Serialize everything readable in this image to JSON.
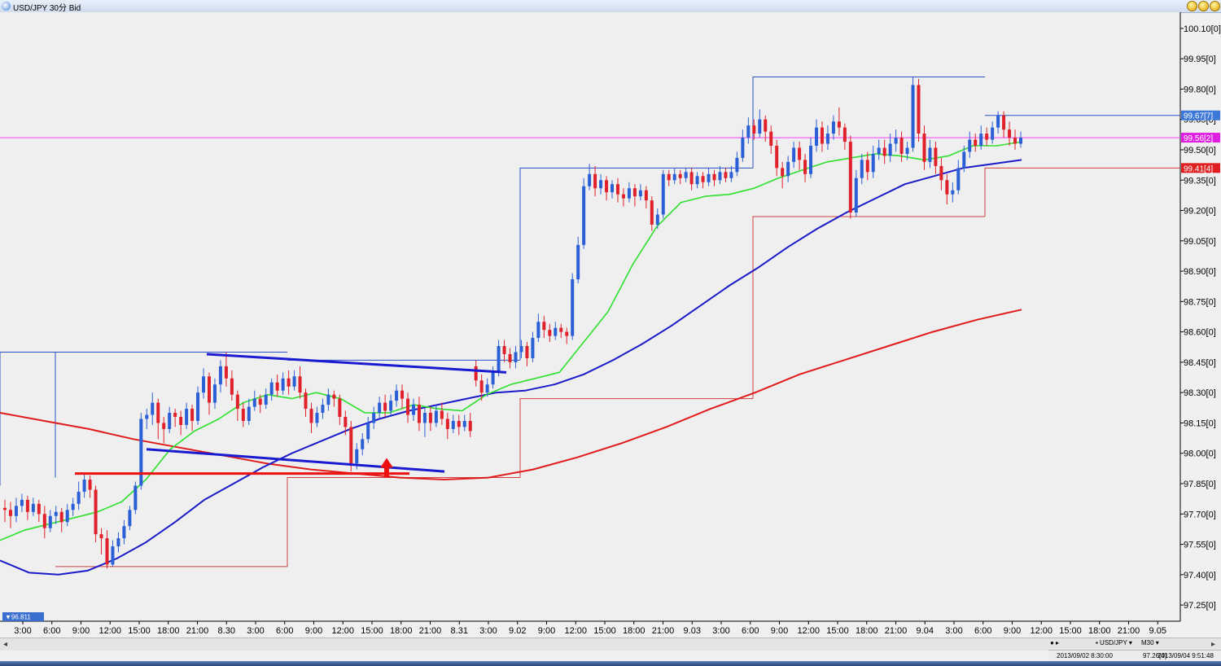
{
  "window": {
    "title": "USD/JPY 30分 Bid",
    "buttons": [
      "minimize-button",
      "maximize-button",
      "close-button"
    ]
  },
  "chart_data": {
    "type": "candlestick",
    "symbol": "USD/JPY",
    "timeframe_label": "M30",
    "price_type": "Bid",
    "ylim": [
      97.17,
      100.18
    ],
    "y_ticks": [
      "100.10[0]",
      "99.95[0]",
      "99.80[0]",
      "99.65[0]",
      "99.50[0]",
      "99.35[0]",
      "99.20[0]",
      "99.05[0]",
      "98.90[0]",
      "98.75[0]",
      "98.60[0]",
      "98.45[0]",
      "98.30[0]",
      "98.15[0]",
      "98.00[0]",
      "97.85[0]",
      "97.70[0]",
      "97.55[0]",
      "97.40[0]",
      "97.25[0]"
    ],
    "y_tick_values": [
      100.1,
      99.95,
      99.8,
      99.65,
      99.5,
      99.35,
      99.2,
      99.05,
      98.9,
      98.75,
      98.6,
      98.45,
      98.3,
      98.15,
      98.0,
      97.85,
      97.7,
      97.55,
      97.4,
      97.25
    ],
    "x_ticks": [
      "3:00",
      "6:00",
      "9:00",
      "12:00",
      "15:00",
      "18:00",
      "21:00",
      "8.30",
      "3:00",
      "6:00",
      "9:00",
      "12:00",
      "15:00",
      "18:00",
      "21:00",
      "8.31",
      "3:00",
      "9.02",
      "9:00",
      "12:00",
      "15:00",
      "18:00",
      "21:00",
      "9.03",
      "3:00",
      "6:00",
      "9:00",
      "12:00",
      "15:00",
      "18:00",
      "21:00",
      "9.04",
      "3:00",
      "6:00",
      "9:00",
      "12:00",
      "15:00",
      "18:00",
      "21:00",
      "9.05"
    ],
    "price_labels": [
      {
        "text": "99.67[7]",
        "value": 99.67,
        "color": "#3c78d8"
      },
      {
        "text": "99.56[2]",
        "value": 99.56,
        "color": "#e020e0"
      },
      {
        "text": "99.41[4]",
        "value": 99.41,
        "color": "#e02020"
      }
    ],
    "low_marker": "▼96.811",
    "horizontal_line": {
      "value": 99.56,
      "color": "#ff40ff"
    },
    "candles": [
      [
        97.73,
        97.72,
        97.66,
        97.77
      ],
      [
        97.72,
        97.69,
        97.63,
        97.76
      ],
      [
        97.69,
        97.74,
        97.66,
        97.78
      ],
      [
        97.74,
        97.77,
        97.71,
        97.8
      ],
      [
        97.77,
        97.71,
        97.67,
        97.79
      ],
      [
        97.71,
        97.75,
        97.69,
        97.78
      ],
      [
        97.75,
        97.7,
        97.66,
        97.77
      ],
      [
        97.7,
        97.63,
        97.58,
        97.74
      ],
      [
        97.63,
        97.69,
        97.61,
        97.72
      ],
      [
        97.69,
        97.71,
        97.65,
        97.74
      ],
      [
        97.71,
        97.66,
        97.61,
        97.73
      ],
      [
        97.66,
        97.72,
        97.64,
        97.75
      ],
      [
        97.72,
        97.75,
        97.69,
        97.78
      ],
      [
        97.75,
        97.81,
        97.72,
        97.86
      ],
      [
        97.81,
        97.87,
        97.78,
        97.9
      ],
      [
        97.87,
        97.82,
        97.78,
        97.89
      ],
      [
        97.82,
        97.6,
        97.56,
        97.84
      ],
      [
        97.6,
        97.58,
        97.5,
        97.63
      ],
      [
        97.58,
        97.45,
        97.43,
        97.62
      ],
      [
        97.45,
        97.54,
        97.44,
        97.57
      ],
      [
        97.54,
        97.58,
        97.51,
        97.61
      ],
      [
        97.58,
        97.64,
        97.55,
        97.67
      ],
      [
        97.64,
        97.72,
        97.62,
        97.74
      ],
      [
        97.72,
        97.84,
        97.7,
        97.86
      ],
      [
        97.84,
        98.17,
        97.82,
        98.2
      ],
      [
        98.17,
        98.19,
        98.12,
        98.22
      ],
      [
        98.19,
        98.25,
        98.14,
        98.3
      ],
      [
        98.25,
        98.15,
        98.07,
        98.27
      ],
      [
        98.15,
        98.12,
        98.05,
        98.18
      ],
      [
        98.12,
        98.2,
        98.1,
        98.23
      ],
      [
        98.2,
        98.18,
        98.13,
        98.22
      ],
      [
        98.18,
        98.14,
        98.09,
        98.21
      ],
      [
        98.14,
        98.22,
        98.12,
        98.25
      ],
      [
        98.22,
        98.16,
        98.11,
        98.24
      ],
      [
        98.16,
        98.3,
        98.14,
        98.33
      ],
      [
        98.3,
        98.38,
        98.27,
        98.42
      ],
      [
        98.38,
        98.25,
        98.19,
        98.4
      ],
      [
        98.25,
        98.34,
        98.22,
        98.37
      ],
      [
        98.34,
        98.43,
        98.3,
        98.46
      ],
      [
        98.43,
        98.37,
        98.33,
        98.5
      ],
      [
        98.37,
        98.29,
        98.26,
        98.41
      ],
      [
        98.29,
        98.22,
        98.16,
        98.31
      ],
      [
        98.22,
        98.16,
        98.13,
        98.25
      ],
      [
        98.16,
        98.23,
        98.14,
        98.27
      ],
      [
        98.23,
        98.27,
        98.21,
        98.31
      ],
      [
        98.27,
        98.24,
        98.2,
        98.29
      ],
      [
        98.24,
        98.29,
        98.22,
        98.32
      ],
      [
        98.29,
        98.35,
        98.26,
        98.37
      ],
      [
        98.35,
        98.31,
        98.28,
        98.39
      ],
      [
        98.31,
        98.37,
        98.29,
        98.4
      ],
      [
        98.37,
        98.33,
        98.29,
        98.41
      ],
      [
        98.33,
        98.38,
        98.31,
        98.41
      ],
      [
        98.38,
        98.3,
        98.27,
        98.43
      ],
      [
        98.3,
        98.22,
        98.18,
        98.32
      ],
      [
        98.22,
        98.15,
        98.1,
        98.25
      ],
      [
        98.15,
        98.2,
        98.13,
        98.23
      ],
      [
        98.2,
        98.24,
        98.17,
        98.27
      ],
      [
        98.24,
        98.29,
        98.21,
        98.32
      ],
      [
        98.29,
        98.27,
        98.23,
        98.31
      ],
      [
        98.27,
        98.18,
        98.14,
        98.29
      ],
      [
        98.18,
        98.13,
        98.09,
        98.21
      ],
      [
        98.13,
        97.95,
        97.91,
        98.16
      ],
      [
        97.95,
        98.02,
        97.92,
        98.05
      ],
      [
        98.02,
        98.07,
        97.99,
        98.1
      ],
      [
        98.07,
        98.15,
        98.05,
        98.18
      ],
      [
        98.15,
        98.2,
        98.12,
        98.23
      ],
      [
        98.2,
        98.25,
        98.17,
        98.28
      ],
      [
        98.25,
        98.21,
        98.18,
        98.29
      ],
      [
        98.21,
        98.26,
        98.18,
        98.29
      ],
      [
        98.26,
        98.31,
        98.23,
        98.34
      ],
      [
        98.31,
        98.27,
        98.22,
        98.34
      ],
      [
        98.27,
        98.19,
        98.15,
        98.3
      ],
      [
        98.19,
        98.24,
        98.16,
        98.27
      ],
      [
        98.24,
        98.15,
        98.11,
        98.28
      ],
      [
        98.15,
        98.2,
        98.08,
        98.23
      ],
      [
        98.2,
        98.15,
        98.11,
        98.23
      ],
      [
        98.15,
        98.21,
        98.13,
        98.24
      ],
      [
        98.21,
        98.17,
        98.14,
        98.25
      ],
      [
        98.17,
        98.12,
        98.07,
        98.2
      ],
      [
        98.12,
        98.16,
        98.1,
        98.19
      ],
      [
        98.16,
        98.13,
        98.09,
        98.19
      ],
      [
        98.13,
        98.16,
        98.11,
        98.19
      ],
      [
        98.16,
        98.11,
        98.08,
        98.2
      ],
      [
        98.43,
        98.36,
        98.33,
        98.46
      ],
      [
        98.36,
        98.3,
        98.26,
        98.39
      ],
      [
        98.3,
        98.34,
        98.28,
        98.37
      ],
      [
        98.34,
        98.4,
        98.32,
        98.43
      ],
      [
        98.4,
        98.53,
        98.38,
        98.56
      ],
      [
        98.53,
        98.49,
        98.45,
        98.56
      ],
      [
        98.49,
        98.45,
        98.42,
        98.52
      ],
      [
        98.45,
        98.5,
        98.42,
        98.53
      ],
      [
        98.5,
        98.53,
        98.47,
        98.56
      ],
      [
        98.53,
        98.47,
        98.43,
        98.55
      ],
      [
        98.47,
        98.57,
        98.45,
        98.6
      ],
      [
        98.57,
        98.65,
        98.55,
        98.69
      ],
      [
        98.65,
        98.61,
        98.57,
        98.68
      ],
      [
        98.61,
        98.58,
        98.55,
        98.64
      ],
      [
        98.58,
        98.62,
        98.56,
        98.65
      ],
      [
        98.62,
        98.6,
        98.57,
        98.64
      ],
      [
        98.6,
        98.58,
        98.54,
        98.62
      ],
      [
        98.58,
        98.86,
        98.56,
        98.89
      ],
      [
        98.86,
        99.03,
        98.84,
        99.07
      ],
      [
        99.03,
        99.32,
        99.01,
        99.36
      ],
      [
        99.32,
        99.38,
        99.3,
        99.43
      ],
      [
        99.38,
        99.31,
        99.27,
        99.42
      ],
      [
        99.31,
        99.35,
        99.28,
        99.38
      ],
      [
        99.35,
        99.29,
        99.25,
        99.37
      ],
      [
        99.29,
        99.33,
        99.26,
        99.35
      ],
      [
        99.33,
        99.28,
        99.24,
        99.36
      ],
      [
        99.28,
        99.26,
        99.22,
        99.31
      ],
      [
        99.26,
        99.31,
        99.24,
        99.34
      ],
      [
        99.31,
        99.27,
        99.22,
        99.33
      ],
      [
        99.27,
        99.3,
        99.25,
        99.33
      ],
      [
        99.3,
        99.25,
        99.21,
        99.32
      ],
      [
        99.25,
        99.13,
        99.1,
        99.27
      ],
      [
        99.13,
        99.18,
        99.11,
        99.21
      ],
      [
        99.18,
        99.38,
        99.16,
        99.4
      ],
      [
        99.38,
        99.35,
        99.32,
        99.4
      ],
      [
        99.35,
        99.38,
        99.33,
        99.41
      ],
      [
        99.38,
        99.36,
        99.33,
        99.4
      ],
      [
        99.36,
        99.39,
        99.34,
        99.41
      ],
      [
        99.39,
        99.33,
        99.3,
        99.41
      ],
      [
        99.33,
        99.37,
        99.31,
        99.39
      ],
      [
        99.37,
        99.34,
        99.31,
        99.39
      ],
      [
        99.34,
        99.38,
        99.32,
        99.41
      ],
      [
        99.38,
        99.35,
        99.32,
        99.4
      ],
      [
        99.35,
        99.39,
        99.33,
        99.42
      ],
      [
        99.39,
        99.36,
        99.34,
        99.41
      ],
      [
        99.36,
        99.39,
        99.34,
        99.42
      ],
      [
        99.39,
        99.46,
        99.37,
        99.49
      ],
      [
        99.46,
        99.56,
        99.44,
        99.6
      ],
      [
        99.56,
        99.62,
        99.53,
        99.66
      ],
      [
        99.62,
        99.58,
        99.55,
        99.65
      ],
      [
        99.58,
        99.65,
        99.56,
        99.7
      ],
      [
        99.65,
        99.59,
        99.54,
        99.67
      ],
      [
        99.59,
        99.52,
        99.48,
        99.62
      ],
      [
        99.52,
        99.41,
        99.37,
        99.55
      ],
      [
        99.41,
        99.37,
        99.31,
        99.44
      ],
      [
        99.37,
        99.44,
        99.34,
        99.47
      ],
      [
        99.44,
        99.51,
        99.41,
        99.54
      ],
      [
        99.51,
        99.45,
        99.4,
        99.54
      ],
      [
        99.45,
        99.38,
        99.34,
        99.48
      ],
      [
        99.38,
        99.52,
        99.36,
        99.56
      ],
      [
        99.52,
        99.61,
        99.49,
        99.65
      ],
      [
        99.61,
        99.53,
        99.49,
        99.64
      ],
      [
        99.53,
        99.58,
        99.5,
        99.62
      ],
      [
        99.58,
        99.64,
        99.55,
        99.67
      ],
      [
        99.64,
        99.61,
        99.57,
        99.71
      ],
      [
        99.61,
        99.54,
        99.5,
        99.63
      ],
      [
        99.54,
        99.19,
        99.16,
        99.57
      ],
      [
        99.19,
        99.36,
        99.17,
        99.4
      ],
      [
        99.36,
        99.45,
        99.33,
        99.48
      ],
      [
        99.45,
        99.39,
        99.35,
        99.49
      ],
      [
        99.39,
        99.48,
        99.36,
        99.52
      ],
      [
        99.48,
        99.51,
        99.45,
        99.55
      ],
      [
        99.51,
        99.47,
        99.43,
        99.55
      ],
      [
        99.47,
        99.53,
        99.44,
        99.58
      ],
      [
        99.53,
        99.56,
        99.49,
        99.6
      ],
      [
        99.56,
        99.48,
        99.44,
        99.59
      ],
      [
        99.48,
        99.51,
        99.45,
        99.54
      ],
      [
        99.51,
        99.82,
        99.49,
        99.86
      ],
      [
        99.82,
        99.58,
        99.54,
        99.85
      ],
      [
        99.58,
        99.44,
        99.4,
        99.62
      ],
      [
        99.44,
        99.51,
        99.41,
        99.55
      ],
      [
        99.51,
        99.42,
        99.38,
        99.54
      ],
      [
        99.42,
        99.35,
        99.3,
        99.46
      ],
      [
        99.35,
        99.28,
        99.23,
        99.38
      ],
      [
        99.28,
        99.3,
        99.24,
        99.34
      ],
      [
        99.3,
        99.41,
        99.28,
        99.45
      ],
      [
        99.41,
        99.49,
        99.39,
        99.52
      ],
      [
        99.49,
        99.55,
        99.46,
        99.59
      ],
      [
        99.55,
        99.52,
        99.49,
        99.58
      ],
      [
        99.52,
        99.58,
        99.5,
        99.62
      ],
      [
        99.58,
        99.55,
        99.52,
        99.61
      ],
      [
        99.55,
        99.61,
        99.53,
        99.64
      ],
      [
        99.61,
        99.67,
        99.58,
        99.69
      ],
      [
        99.67,
        99.6,
        99.56,
        99.69
      ],
      [
        99.6,
        99.56,
        99.52,
        99.64
      ],
      [
        99.56,
        99.53,
        99.5,
        99.6
      ],
      [
        99.53,
        99.56,
        99.51,
        99.59
      ]
    ],
    "ma_short": [
      97.57,
      97.62,
      97.65,
      97.68,
      97.71,
      97.76,
      97.87,
      98.02,
      98.11,
      98.17,
      98.25,
      98.29,
      98.27,
      98.3,
      98.27,
      98.2,
      98.2,
      98.24,
      98.22,
      98.21,
      98.29,
      98.34,
      98.37,
      98.4,
      98.55,
      98.7,
      98.93,
      99.12,
      99.24,
      99.27,
      99.28,
      99.31,
      99.36,
      99.4,
      99.44,
      99.46,
      99.48,
      99.47,
      99.45,
      99.47,
      99.52,
      99.52,
      99.54
    ],
    "ma_mid": [
      97.47,
      97.41,
      97.4,
      97.42,
      97.48,
      97.56,
      97.66,
      97.77,
      97.85,
      97.93,
      98.0,
      98.06,
      98.12,
      98.17,
      98.21,
      98.24,
      98.27,
      98.3,
      98.31,
      98.34,
      98.39,
      98.46,
      98.54,
      98.63,
      98.73,
      98.83,
      98.92,
      99.02,
      99.11,
      99.19,
      99.26,
      99.33,
      99.37,
      99.41,
      99.43,
      99.45
    ],
    "ma_long": [
      98.2,
      98.16,
      98.12,
      98.07,
      98.03,
      97.99,
      97.95,
      97.92,
      97.9,
      97.88,
      97.87,
      97.88,
      97.92,
      97.98,
      98.05,
      98.13,
      98.22,
      98.3,
      98.39,
      98.46,
      98.53,
      98.6,
      98.66,
      98.71
    ],
    "trendlines": [
      {
        "color": "#1a1ad0",
        "p1": [
          98.49,
          254
        ],
        "p2": [
          98.4,
          622
        ]
      },
      {
        "color": "#1a1ad0",
        "p1": [
          98.02,
          180
        ],
        "p2": [
          97.91,
          546
        ]
      },
      {
        "color": "#ee1111",
        "p1": [
          97.9,
          92
        ],
        "p2": [
          97.9,
          503
        ]
      }
    ],
    "arrow": {
      "value": 97.88,
      "color": "#ee1111"
    },
    "boxes": [
      {
        "color": "#2a52c6",
        "top": 98.5,
        "bottom": 97.84,
        "x1": 0,
        "x2": 68
      },
      {
        "color": "#2a52c6",
        "top": 98.5,
        "bottom": 97.88,
        "x1": 68,
        "x2": 353
      },
      {
        "color": "#2a52c6",
        "top": 98.46,
        "bottom": 98.46,
        "x1": 353,
        "x2": 639
      },
      {
        "color": "#2a52c6",
        "top": 99.41,
        "bottom": 98.46,
        "x1": 639,
        "x2": 925
      },
      {
        "color": "#2a52c6",
        "top": 99.86,
        "bottom": 99.41,
        "x1": 925,
        "x2": 1210
      },
      {
        "color": "#2a52c6",
        "top": 99.67,
        "bottom": 99.67,
        "x1": 1210,
        "x2": 1450
      },
      {
        "color": "#d04040",
        "top": 97.44,
        "bottom": 97.44,
        "x1": 68,
        "x2": 353
      },
      {
        "color": "#d04040",
        "top": 97.88,
        "bottom": 97.44,
        "x1": 353,
        "x2": 639
      },
      {
        "color": "#d04040",
        "top": 98.27,
        "bottom": 97.88,
        "x1": 639,
        "x2": 925
      },
      {
        "color": "#d04040",
        "top": 99.17,
        "bottom": 98.27,
        "x1": 925,
        "x2": 1210
      },
      {
        "color": "#d04040",
        "top": 99.41,
        "bottom": 99.17,
        "x1": 1210,
        "x2": 1450
      }
    ]
  },
  "controls": {
    "nav": "● ▸",
    "symbol": "▪ USD/JPY ▾",
    "timeframe": "M30 ▾"
  },
  "status": {
    "time1": "2013/09/02 8:30:00",
    "price": "97.26[4]",
    "time2": "2013/09/04 9:51:48"
  },
  "scroll": {
    "left": "◂",
    "right": "▸"
  }
}
